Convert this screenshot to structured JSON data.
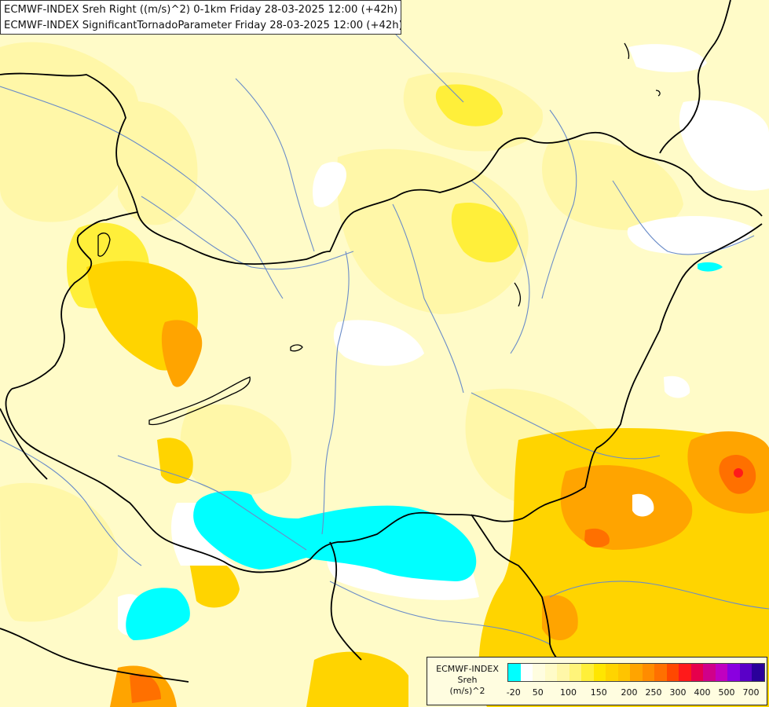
{
  "header": {
    "line1": "ECMWF-INDEX Sreh Right ((m/s)^2) 0-1km Friday 28-03-2025 12:00 (+42h)",
    "line2": "ECMWF-INDEX SignificantTornadoParameter Friday 28-03-2025 12:00 (+42h)"
  },
  "legend": {
    "title_line1": "ECMWF-INDEX",
    "title_line2": "Sreh",
    "title_line3": "(m/s)^2",
    "colors": [
      "#00ffff",
      "#ffffff",
      "#fffde0",
      "#fffbc8",
      "#fff7a8",
      "#fff47a",
      "#ffef3a",
      "#ffe600",
      "#ffd400",
      "#ffc400",
      "#ffa400",
      "#ff8c00",
      "#ff7000",
      "#ff4800",
      "#ff1a1a",
      "#e6004c",
      "#d0008a",
      "#c000c0",
      "#8a00e0",
      "#5a00c8",
      "#2a009a"
    ],
    "ticks": [
      "-20",
      "50",
      "100",
      "150",
      "200",
      "250",
      "300",
      "400",
      "500",
      "700"
    ]
  },
  "colors": {
    "background": "#fffbc8",
    "border_lines": "#000000",
    "rivers": "#6a8cc8"
  }
}
